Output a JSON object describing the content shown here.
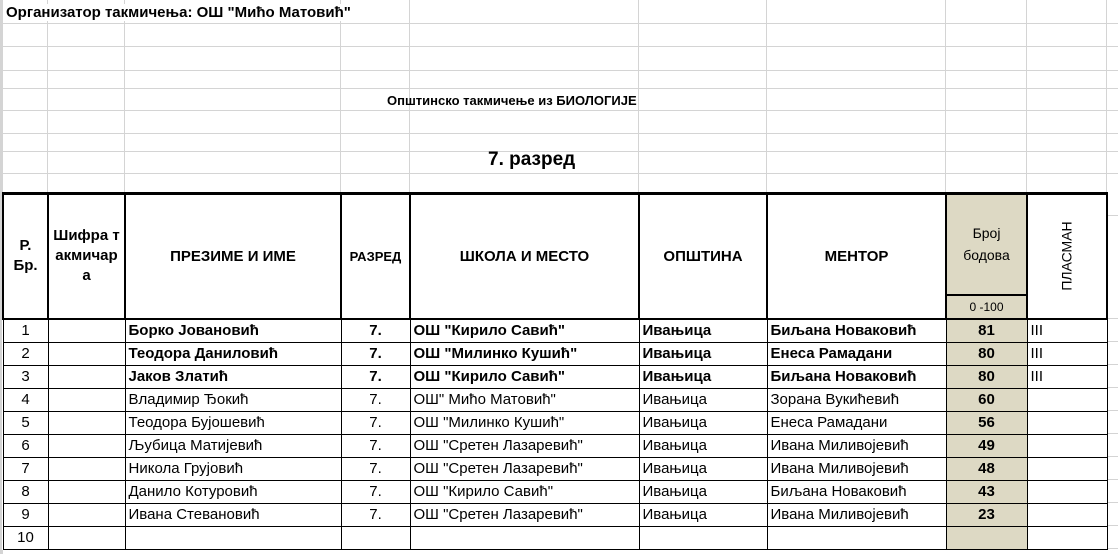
{
  "organizer": "Организатор такмичења: ОШ \"Мићо Матовић\"",
  "competition_title": "Општинско такмичење из БИОЛОГИЈЕ",
  "grade_title": "7. разред",
  "colors": {
    "score_fill": "#ddd9c4",
    "grid": "#d4d4d4"
  },
  "headers": {
    "rb": "Р. Бр.",
    "code": "Шифра такмичара",
    "name": "ПРЕЗИМЕ И ИМЕ",
    "grade": "РАЗРЕД",
    "school": "ШКОЛА И МЕСТО",
    "municipality": "ОПШТИНА",
    "mentor": "МЕНТОР",
    "points": "Број бодова",
    "points_range": "0 -100",
    "placement": "ПЛАСМАН"
  },
  "rows": [
    {
      "rb": "1",
      "code": "",
      "name": "Борко Јовановић",
      "grade": "7.",
      "school": "ОШ \"Кирило Савић\"",
      "municipality": "Ивањица",
      "mentor": "Биљана Новаковић",
      "points": "81",
      "placement": "III",
      "bold": true
    },
    {
      "rb": "2",
      "code": "",
      "name": "Теодора Даниловић",
      "grade": "7.",
      "school": "ОШ \"Милинко Кушић\"",
      "municipality": "Ивањица",
      "mentor": "Енеса Рамадани",
      "points": "80",
      "placement": "III",
      "bold": true
    },
    {
      "rb": "3",
      "code": "",
      "name": "Јаков Златић",
      "grade": "7.",
      "school": "ОШ \"Кирило Савић\"",
      "municipality": "Ивањица",
      "mentor": "Биљана Новаковић",
      "points": "80",
      "placement": "III",
      "bold": true
    },
    {
      "rb": "4",
      "code": "",
      "name": "Владимир Ђокић",
      "grade": "7.",
      "school": "ОШ\" Мићо Матовић\"",
      "municipality": "Ивањица",
      "mentor": "Зорана Вукићевић",
      "points": "60",
      "placement": "",
      "bold": false
    },
    {
      "rb": "5",
      "code": "",
      "name": "Теодора Бујошевић",
      "grade": "7.",
      "school": "ОШ \"Милинко Кушић\"",
      "municipality": "Ивањица",
      "mentor": "Енеса Рамадани",
      "points": "56",
      "placement": "",
      "bold": false
    },
    {
      "rb": "6",
      "code": "",
      "name": "Љубица Матијевић",
      "grade": "7.",
      "school": "ОШ \"Сретен Лазаревић\"",
      "municipality": "Ивањица",
      "mentor": "Ивана Миливојевић",
      "points": "49",
      "placement": "",
      "bold": false
    },
    {
      "rb": "7",
      "code": "",
      "name": "Никола Грујовић",
      "grade": "7.",
      "school": "ОШ \"Сретен Лазаревић\"",
      "municipality": "Ивањица",
      "mentor": "Ивана Миливојевић",
      "points": "48",
      "placement": "",
      "bold": false
    },
    {
      "rb": "8",
      "code": "",
      "name": "Данило Котуровић",
      "grade": "7.",
      "school": "ОШ \"Кирило Савић\"",
      "municipality": "Ивањица",
      "mentor": "Биљана Новаковић",
      "points": "43",
      "placement": "",
      "bold": false
    },
    {
      "rb": "9",
      "code": "",
      "name": "Ивана Стевановић",
      "grade": "7.",
      "school": "ОШ \"Сретен Лазаревић\"",
      "municipality": "Ивањица",
      "mentor": "Ивана Миливојевић",
      "points": "23",
      "placement": "",
      "bold": false
    },
    {
      "rb": "10",
      "code": "",
      "name": "",
      "grade": "",
      "school": "",
      "municipality": "",
      "mentor": "",
      "points": "",
      "placement": "",
      "bold": false
    }
  ]
}
